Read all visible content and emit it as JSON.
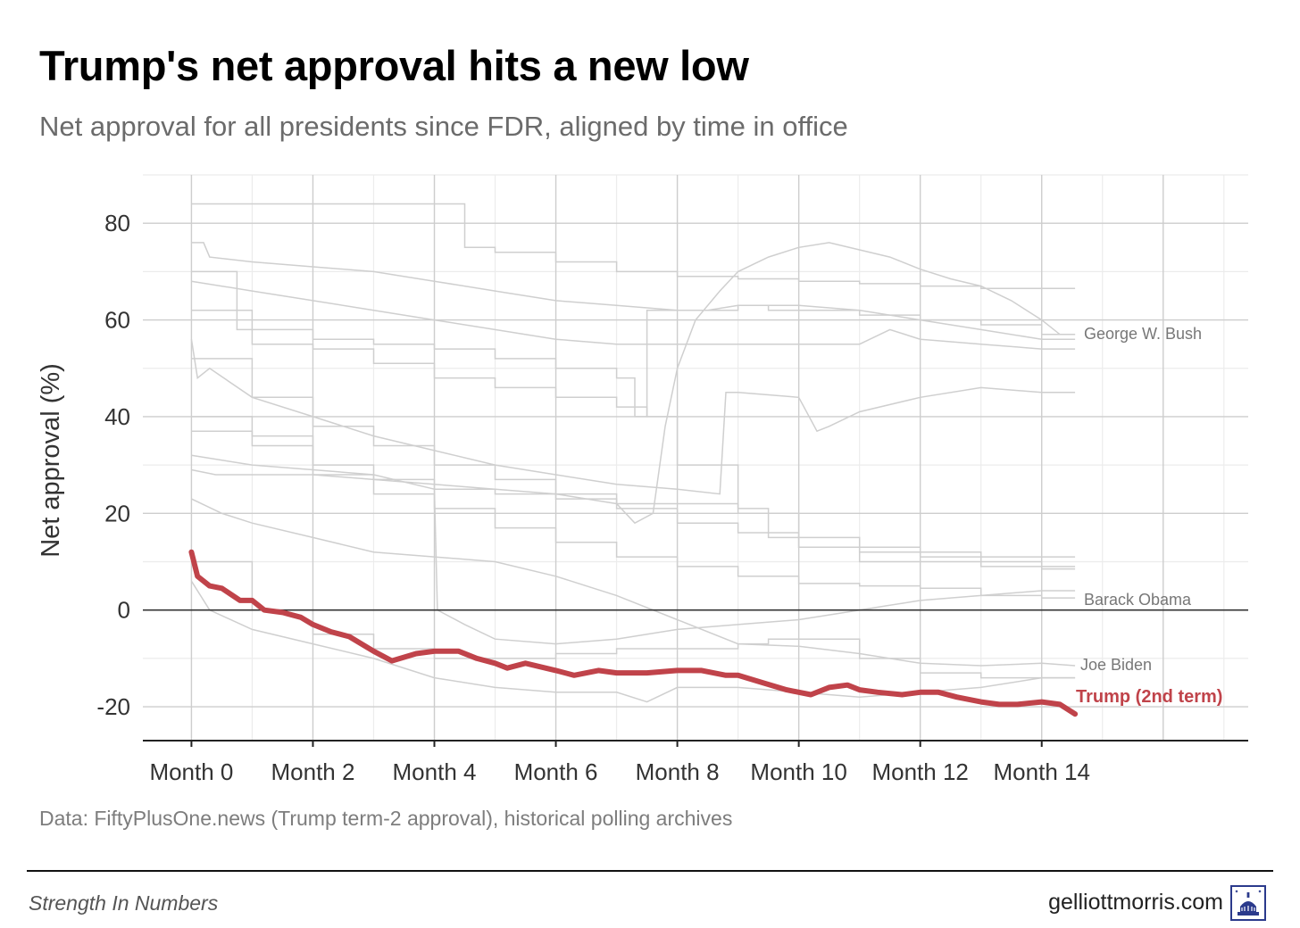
{
  "chart_data": {
    "type": "line",
    "title": "Trump's net approval hits a new low",
    "subtitle": "Net approval for all presidents since FDR, aligned by time in office",
    "ylabel": "Net approval (%)",
    "xlabel": "",
    "xlim": [
      -0.8,
      17.4
    ],
    "ylim": [
      -27,
      90
    ],
    "x_tick_values": [
      0,
      2,
      4,
      6,
      8,
      10,
      12,
      14
    ],
    "x_tick_labels": [
      "Month 0",
      "Month 2",
      "Month 4",
      "Month 6",
      "Month 8",
      "Month 10",
      "Month 12",
      "Month 14"
    ],
    "y_tick_values": [
      -20,
      0,
      20,
      40,
      60,
      80
    ],
    "y_tick_labels": [
      "-20",
      "0",
      "20",
      "40",
      "60",
      "80"
    ],
    "grid": true,
    "colors": {
      "highlight": "#c0434a",
      "background_series": "#cfcfcf",
      "labels": "#777777"
    },
    "series": [
      {
        "name": "Trump (2nd term)",
        "highlight": true,
        "x": [
          0,
          0.1,
          0.3,
          0.5,
          0.8,
          1.0,
          1.2,
          1.5,
          1.8,
          2.0,
          2.3,
          2.6,
          3.0,
          3.3,
          3.7,
          4.0,
          4.2,
          4.4,
          4.7,
          5.0,
          5.2,
          5.5,
          6.0,
          6.3,
          6.7,
          7.0,
          7.5,
          8.0,
          8.4,
          8.8,
          9.0,
          9.4,
          9.8,
          10.2,
          10.5,
          10.8,
          11.0,
          11.3,
          11.7,
          12.0,
          12.3,
          12.6,
          13.0,
          13.3,
          13.6,
          14.0,
          14.3,
          14.55
        ],
        "y": [
          12,
          7,
          5,
          4.5,
          2,
          2,
          0,
          -0.5,
          -1.5,
          -3,
          -4.5,
          -5.5,
          -8.5,
          -10.5,
          -9,
          -8.5,
          -8.5,
          -8.5,
          -10,
          -11,
          -12,
          -11,
          -12.5,
          -13.5,
          -12.5,
          -13,
          -13,
          -12.5,
          -12.5,
          -13.5,
          -13.5,
          -15,
          -16.5,
          -17.5,
          -16,
          -15.5,
          -16.5,
          -17,
          -17.5,
          -17,
          -17,
          -18,
          -19,
          -19.5,
          -19.5,
          -19,
          -19.5,
          -21.5
        ]
      },
      {
        "name": "George W. Bush",
        "x": [
          0,
          0.4,
          1,
          2,
          3,
          4,
          5,
          6,
          7,
          7.3,
          7.6,
          7.8,
          8.0,
          8.3,
          8.7,
          9.0,
          9.5,
          10.0,
          10.5,
          11.0,
          11.5,
          12.0,
          12.5,
          13.0,
          13.5,
          14.0,
          14.3,
          14.55
        ],
        "y": [
          29,
          28,
          28,
          28,
          27,
          26,
          25,
          24,
          22,
          18,
          20,
          38,
          50,
          60,
          66,
          70,
          73,
          75,
          76,
          74.5,
          73,
          70.5,
          68.5,
          67,
          64,
          60,
          57,
          57
        ]
      },
      {
        "name": "Barack Obama",
        "x": [
          0,
          1,
          2,
          3,
          4,
          5,
          6,
          7,
          8,
          9,
          10,
          11,
          12,
          13,
          14,
          14.55
        ],
        "y": [
          37,
          34,
          28,
          24,
          21,
          17,
          14,
          11,
          9,
          7,
          5.5,
          5,
          4.5,
          3,
          2.5,
          2.5
        ]
      },
      {
        "name": "Joe Biden",
        "x": [
          0,
          0.5,
          1,
          2,
          3,
          4,
          5,
          6,
          7,
          8,
          9,
          10,
          11,
          12,
          13,
          14,
          14.55
        ],
        "y": [
          23,
          20,
          18,
          15,
          12,
          11,
          10,
          7,
          3,
          -2,
          -7,
          -7.5,
          -9,
          -11,
          -11.5,
          -11,
          -11.5
        ]
      },
      {
        "x": [
          0,
          0.25,
          0.5,
          1,
          2,
          3,
          3.5,
          4,
          4.5,
          5,
          6,
          7,
          8,
          9,
          10,
          11,
          12,
          13,
          14,
          14.55
        ],
        "y": [
          84,
          84,
          84,
          84,
          84,
          84,
          84,
          84,
          75,
          74,
          72,
          70,
          69,
          68.5,
          68,
          67.5,
          67,
          66.5,
          66.5,
          66.5
        ]
      },
      {
        "x": [
          0,
          0.2,
          0.3,
          1,
          2,
          3,
          4,
          5,
          6,
          7,
          8,
          8.5,
          9,
          10,
          11,
          12,
          13,
          14,
          14.55
        ],
        "y": [
          76,
          76,
          73,
          72,
          71,
          70,
          68,
          66,
          64,
          63,
          62,
          62,
          63,
          63,
          62,
          60,
          58,
          56,
          56
        ]
      },
      {
        "x": [
          0,
          0.7,
          0.75,
          1,
          2,
          3,
          4,
          5,
          6,
          7,
          7.3,
          7.5,
          8,
          9,
          9.5,
          10,
          11,
          12,
          13,
          14,
          14.55
        ],
        "y": [
          70,
          70,
          58,
          58,
          56,
          55,
          54,
          52,
          50,
          48,
          40,
          62,
          62,
          63,
          62,
          62,
          61,
          60,
          59,
          57,
          57
        ]
      },
      {
        "x": [
          0,
          1,
          2,
          3,
          4,
          5,
          6,
          7,
          8,
          9,
          10,
          11,
          11.5,
          12,
          13,
          14,
          14.55
        ],
        "y": [
          68,
          66,
          64,
          62,
          60,
          58,
          56,
          55,
          55,
          55,
          55,
          55,
          58,
          56,
          55,
          54,
          54
        ]
      },
      {
        "x": [
          0,
          1,
          2,
          3,
          4,
          5,
          6,
          7,
          7.5,
          8,
          9,
          10,
          11,
          12,
          13,
          14,
          14.55
        ],
        "y": [
          62,
          55,
          54,
          51,
          48,
          46,
          44,
          42,
          40,
          30,
          20,
          15,
          13,
          12,
          11,
          11,
          11
        ]
      },
      {
        "x": [
          0,
          0.1,
          0.3,
          1,
          2,
          3,
          4,
          5,
          6,
          7,
          8,
          8.7,
          8.8,
          9,
          10,
          10.3,
          10.5,
          11,
          12,
          13,
          14,
          14.55
        ],
        "y": [
          56,
          48,
          50,
          44,
          40,
          36,
          33,
          30,
          28,
          26,
          25,
          24,
          45,
          45,
          44,
          37,
          38,
          41,
          44,
          46,
          45,
          45
        ]
      },
      {
        "x": [
          0,
          1,
          2,
          3,
          4,
          5,
          6,
          7,
          8,
          9,
          9.5,
          10,
          11,
          12,
          13,
          14,
          14.55
        ],
        "y": [
          40,
          36,
          30,
          27,
          25,
          24,
          23,
          22,
          22,
          21,
          15,
          13,
          12,
          11,
          10,
          9,
          9
        ]
      },
      {
        "x": [
          0,
          1,
          2,
          3,
          4,
          4.05,
          4.5,
          5,
          6,
          7,
          8,
          9,
          10,
          11,
          11.5,
          12,
          13,
          14,
          14.55
        ],
        "y": [
          32,
          30,
          29,
          28,
          25,
          0,
          -3,
          -6,
          -7,
          -6,
          -4,
          -3,
          -2,
          0,
          1,
          2,
          3,
          4,
          4
        ]
      },
      {
        "x": [
          0,
          1,
          2,
          3,
          4,
          5,
          6,
          7,
          8,
          9,
          9.5,
          10,
          11,
          12,
          13,
          14,
          14.55
        ],
        "y": [
          10,
          0,
          -5,
          -8,
          -10,
          -10,
          -9,
          -8,
          -8,
          -7,
          -6,
          -6,
          -10,
          -13,
          -14,
          -14,
          -14
        ]
      },
      {
        "x": [
          0,
          0.3,
          1,
          2,
          3,
          4,
          5,
          6,
          7,
          7.5,
          8,
          9,
          10,
          11,
          12,
          13,
          14,
          14.55
        ],
        "y": [
          6,
          0,
          -4,
          -7,
          -10,
          -14,
          -16,
          -17,
          -17,
          -19,
          -16,
          -16,
          -17,
          -18,
          -17,
          -16,
          -14,
          -14
        ]
      },
      {
        "x": [
          0,
          1,
          2,
          3,
          4,
          5,
          6,
          7,
          8,
          9,
          10,
          11,
          12,
          13,
          14,
          14.55
        ],
        "y": [
          52,
          44,
          38,
          34,
          30,
          27,
          24,
          21,
          18,
          16,
          13,
          10,
          10,
          9,
          8.5,
          8.5
        ]
      }
    ]
  },
  "source_note": "Data: FiftyPlusOne.news (Trump term-2 approval), historical polling archives",
  "footer": {
    "left": "Strength In Numbers",
    "right": "gelliottmorris.com",
    "logo_icon": "capitol-dome-icon"
  }
}
